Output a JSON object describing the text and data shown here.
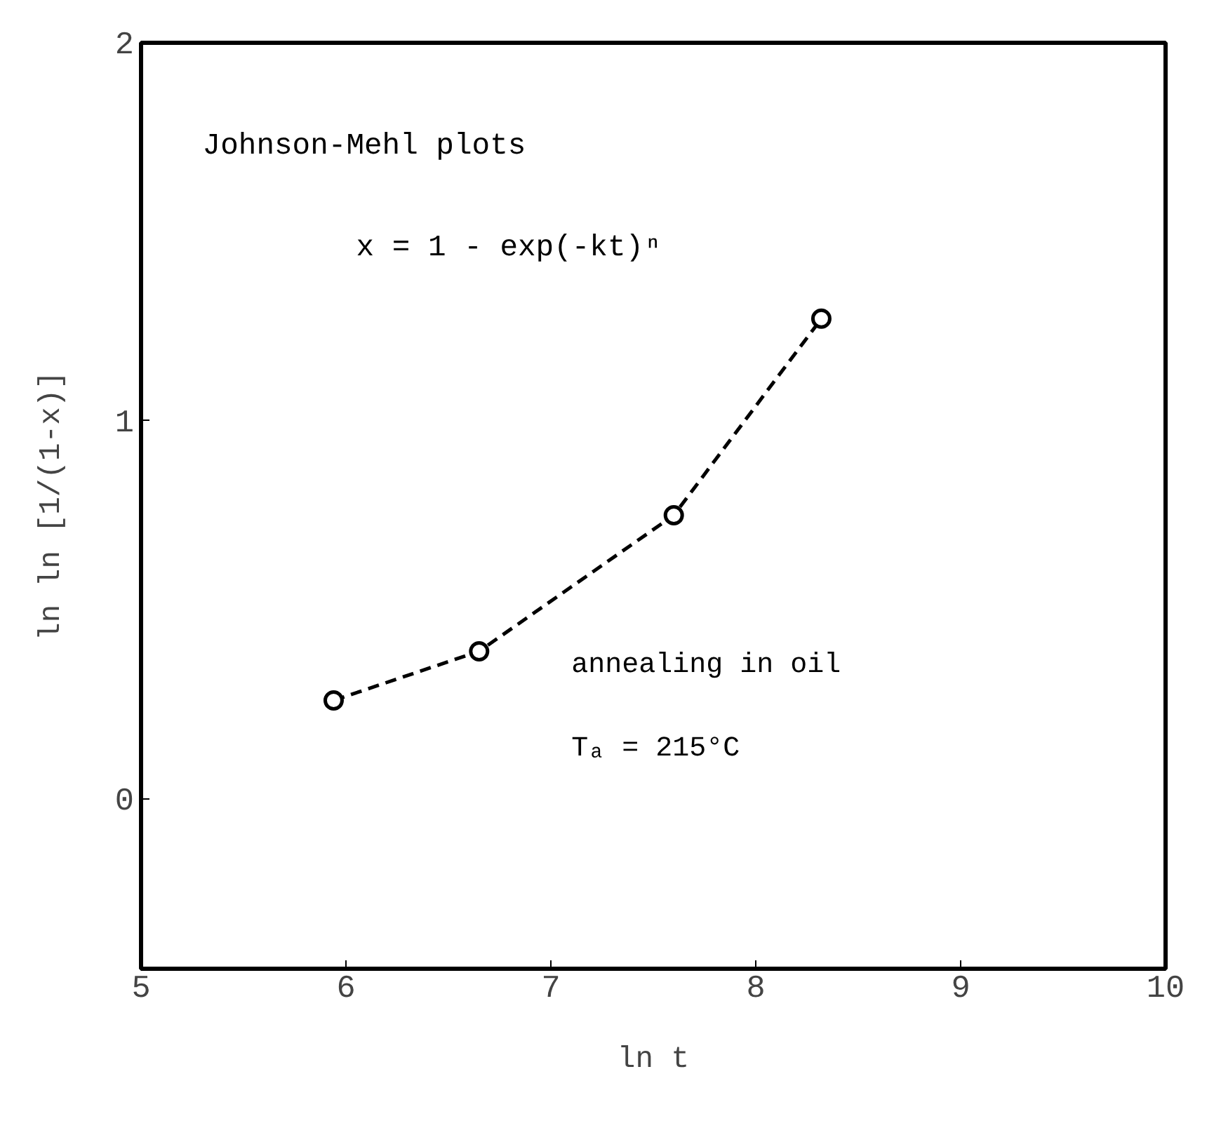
{
  "chart_data": {
    "type": "line",
    "xlabel": "ln t",
    "ylabel": "ln ln [1/(1-x)]",
    "annotations": [
      "Johnson-Mehl plots",
      "x = 1 - exp(-kt)ⁿ",
      "annealing in oil",
      "Tₐ = 215°C"
    ],
    "x": [
      5.94,
      6.65,
      7.6,
      8.32
    ],
    "series": [
      {
        "color": "#000000",
        "values": [
          0.26,
          0.39,
          0.75,
          1.27
        ]
      }
    ],
    "marker": "circle",
    "line_style": "dashed",
    "xlim": [
      5,
      10
    ],
    "ylim": [
      -0.45,
      2
    ],
    "xticks": [
      5,
      6,
      7,
      8,
      9,
      10
    ],
    "yticks": [
      0,
      1,
      2
    ],
    "grid": false
  }
}
